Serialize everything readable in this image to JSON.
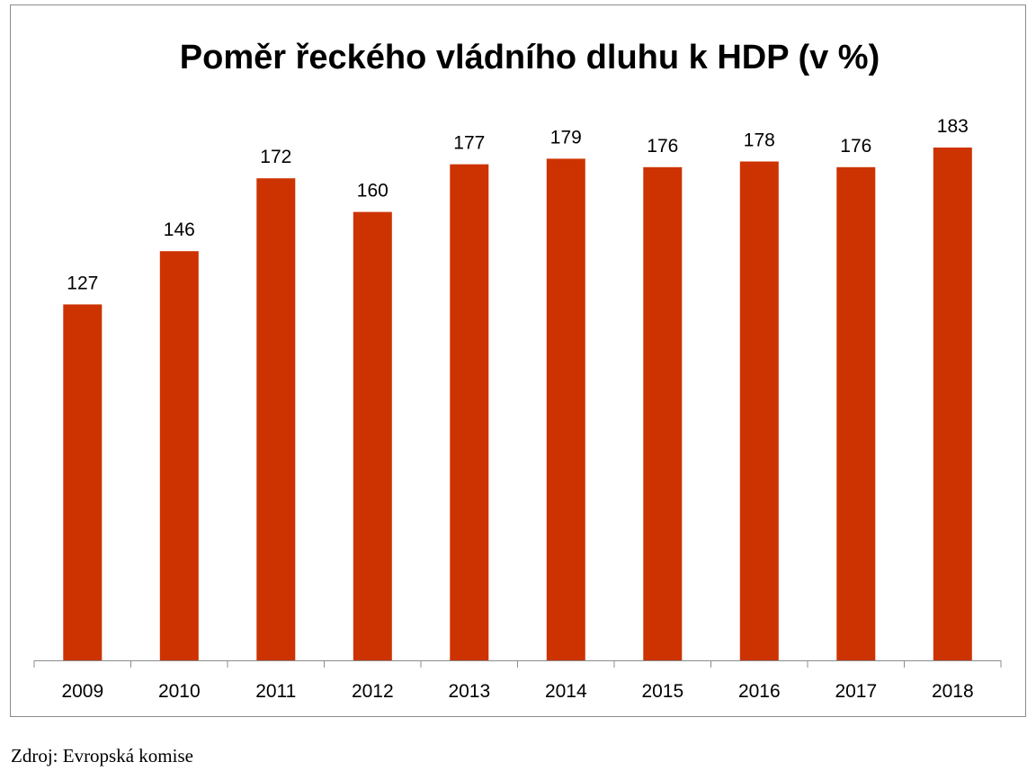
{
  "chart_data": {
    "type": "bar",
    "title": "Poměr řeckého vládního dluhu k HDP (v %)",
    "categories": [
      "2009",
      "2010",
      "2011",
      "2012",
      "2013",
      "2014",
      "2015",
      "2016",
      "2017",
      "2018"
    ],
    "values": [
      127,
      146,
      172,
      160,
      177,
      179,
      176,
      178,
      176,
      183
    ],
    "xlabel": "",
    "ylabel": "",
    "ylim": [
      0,
      185
    ],
    "grid": false,
    "legend": "none",
    "data_labels": true,
    "bar_color": "#cc3300"
  },
  "source": "Zdroj: Evropská komise"
}
